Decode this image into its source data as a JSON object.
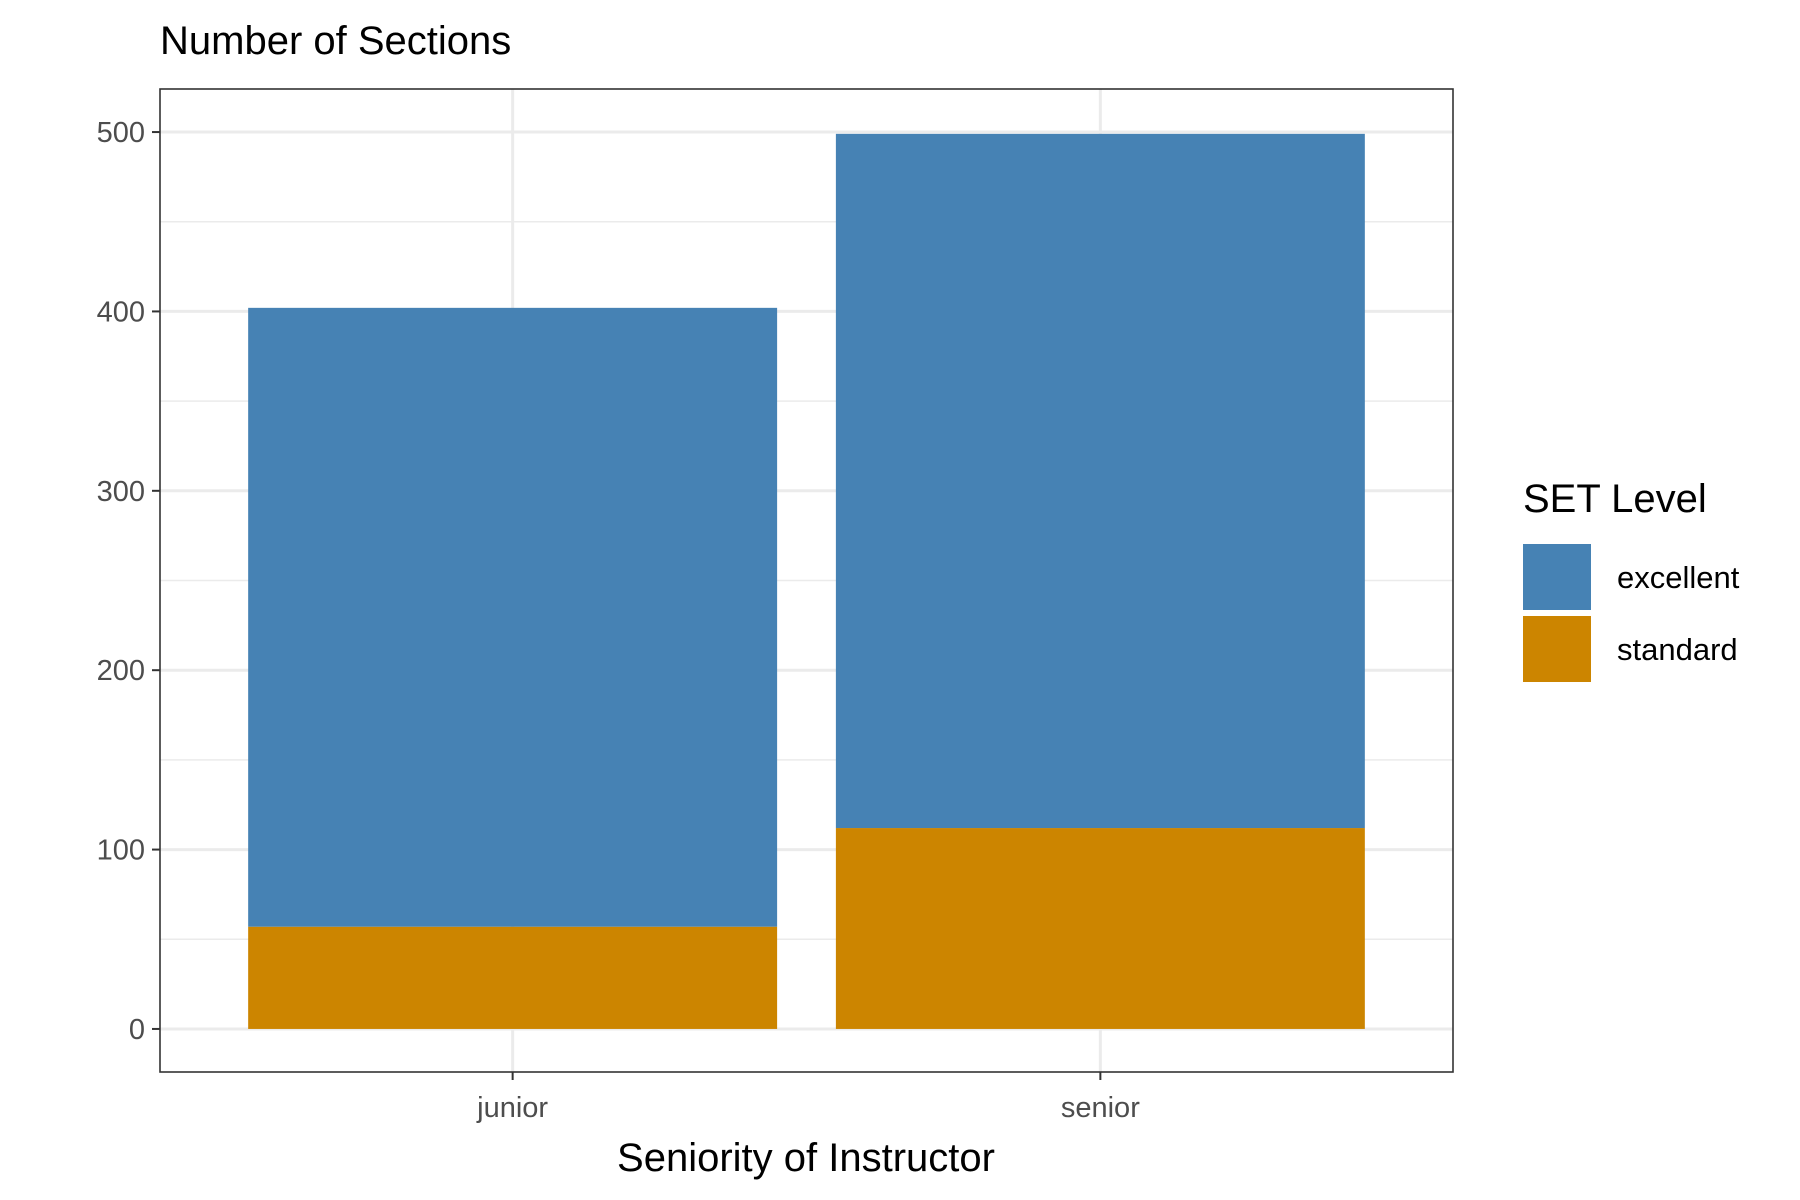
{
  "chart_data": {
    "type": "bar",
    "stacked": true,
    "title": "Number of Sections",
    "xlabel": "Seniority of Instructor",
    "ylabel": "",
    "categories": [
      "junior",
      "senior"
    ],
    "series": [
      {
        "name": "standard",
        "values": [
          57,
          112
        ],
        "color": "#CC8500"
      },
      {
        "name": "excellent",
        "values": [
          345,
          387
        ],
        "color": "#4682B4"
      }
    ],
    "ylim": [
      -24,
      524
    ],
    "yticks": [
      0,
      100,
      200,
      300,
      400,
      500
    ],
    "yticks_minor": [
      50,
      150,
      250,
      350,
      450
    ],
    "grid": true,
    "legend": {
      "title": "SET Level",
      "position": "right",
      "order": [
        "excellent",
        "standard"
      ]
    }
  }
}
